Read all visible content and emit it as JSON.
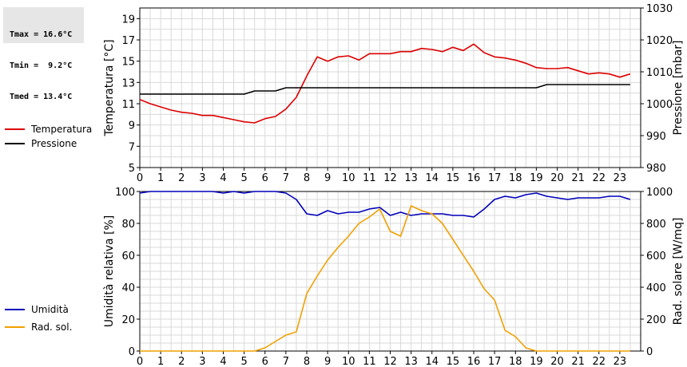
{
  "stats": {
    "tmax": "Tmax = 16.6°C",
    "tmin": "Tmin =  9.2°C",
    "tmed": "Tmed = 13.4°C"
  },
  "colors": {
    "temperature": "#dd0000",
    "pressure": "#000000",
    "humidity": "#0000bb",
    "radiation": "#f0a000"
  },
  "chart_data": [
    {
      "type": "line",
      "x": [
        0,
        0.5,
        1,
        1.5,
        2,
        2.5,
        3,
        3.5,
        4,
        4.5,
        5,
        5.5,
        6,
        6.5,
        7,
        7.5,
        8,
        8.5,
        9,
        9.5,
        10,
        10.5,
        11,
        11.5,
        12,
        12.5,
        13,
        13.5,
        14,
        14.5,
        15,
        15.5,
        16,
        16.5,
        17,
        17.5,
        18,
        18.5,
        19,
        19.5,
        20,
        20.5,
        21,
        21.5,
        22,
        22.5,
        23,
        23.5
      ],
      "xticks": [
        "0",
        "1",
        "2",
        "3",
        "4",
        "5",
        "6",
        "7",
        "8",
        "9",
        "10",
        "11",
        "12",
        "13",
        "14",
        "15",
        "16",
        "17",
        "18",
        "19",
        "20",
        "21",
        "22",
        "23"
      ],
      "xlim": [
        0,
        24
      ],
      "ylabel": "Temperatura [°C]",
      "ylim": [
        5,
        20
      ],
      "yticks": [
        "5",
        "7",
        "9",
        "11",
        "13",
        "15",
        "17",
        "19"
      ],
      "y2label": "Pressione [mbar]",
      "y2lim": [
        980,
        1030
      ],
      "y2ticks": [
        "980",
        "990",
        "1000",
        "1010",
        "1020",
        "1030"
      ],
      "grid": true,
      "legend_placement": "left",
      "series": [
        {
          "name": "Temperatura",
          "axis": "left",
          "values": [
            11.4,
            11.0,
            10.7,
            10.4,
            10.2,
            10.1,
            9.9,
            9.9,
            9.7,
            9.5,
            9.3,
            9.2,
            9.6,
            9.8,
            10.5,
            11.6,
            13.6,
            15.4,
            15.0,
            15.4,
            15.5,
            15.1,
            15.7,
            15.7,
            15.7,
            15.9,
            15.9,
            16.2,
            16.1,
            15.9,
            16.3,
            16.0,
            16.6,
            15.8,
            15.4,
            15.3,
            15.1,
            14.8,
            14.4,
            14.3,
            14.3,
            14.4,
            14.1,
            13.8,
            13.9,
            13.8,
            13.5,
            13.8
          ]
        },
        {
          "name": "Pressione",
          "axis": "right",
          "values": [
            1003,
            1003,
            1003,
            1003,
            1003,
            1003,
            1003,
            1003,
            1003,
            1003,
            1003,
            1004,
            1004,
            1004,
            1005,
            1005,
            1005,
            1005,
            1005,
            1005,
            1005,
            1005,
            1005,
            1005,
            1005,
            1005,
            1005,
            1005,
            1005,
            1005,
            1005,
            1005,
            1005,
            1005,
            1005,
            1005,
            1005,
            1005,
            1005,
            1006,
            1006,
            1006,
            1006,
            1006,
            1006,
            1006,
            1006,
            1006
          ]
        }
      ]
    },
    {
      "type": "line",
      "x": [
        0,
        0.5,
        1,
        1.5,
        2,
        2.5,
        3,
        3.5,
        4,
        4.5,
        5,
        5.5,
        6,
        6.5,
        7,
        7.5,
        8,
        8.5,
        9,
        9.5,
        10,
        10.5,
        11,
        11.5,
        12,
        12.5,
        13,
        13.5,
        14,
        14.5,
        15,
        15.5,
        16,
        16.5,
        17,
        17.5,
        18,
        18.5,
        19,
        19.5,
        20,
        20.5,
        21,
        21.5,
        22,
        22.5,
        23,
        23.5
      ],
      "xticks": [
        "0",
        "1",
        "2",
        "3",
        "4",
        "5",
        "6",
        "7",
        "8",
        "9",
        "10",
        "11",
        "12",
        "13",
        "14",
        "15",
        "16",
        "17",
        "18",
        "19",
        "20",
        "21",
        "22",
        "23"
      ],
      "xlim": [
        0,
        24
      ],
      "ylabel": "Umidità relativa [%]",
      "ylim": [
        0,
        100
      ],
      "yticks": [
        "0",
        "20",
        "40",
        "60",
        "80",
        "100"
      ],
      "y2label": "Rad. solare [W/mq]",
      "y2lim": [
        0,
        1000
      ],
      "y2ticks": [
        "0",
        "200",
        "400",
        "600",
        "800",
        "1000"
      ],
      "grid": true,
      "legend_placement": "left",
      "series": [
        {
          "name": "Umidità",
          "axis": "left",
          "values": [
            99,
            100,
            100,
            100,
            100,
            100,
            100,
            100,
            99,
            100,
            99,
            100,
            100,
            100,
            99,
            95,
            86,
            85,
            88,
            86,
            87,
            87,
            89,
            90,
            85,
            87,
            85,
            86,
            86,
            86,
            85,
            85,
            84,
            89,
            95,
            97,
            96,
            98,
            99,
            97,
            96,
            95,
            96,
            96,
            96,
            97,
            97,
            95
          ]
        },
        {
          "name": "Rad. sol.",
          "axis": "right",
          "values": [
            0,
            0,
            0,
            0,
            0,
            0,
            0,
            0,
            0,
            0,
            0,
            0,
            20,
            60,
            100,
            120,
            360,
            470,
            570,
            650,
            720,
            800,
            840,
            890,
            750,
            720,
            910,
            880,
            860,
            800,
            700,
            600,
            500,
            390,
            320,
            130,
            90,
            20,
            0,
            0,
            0,
            0,
            0,
            0,
            0,
            0,
            0,
            0
          ]
        }
      ]
    }
  ]
}
